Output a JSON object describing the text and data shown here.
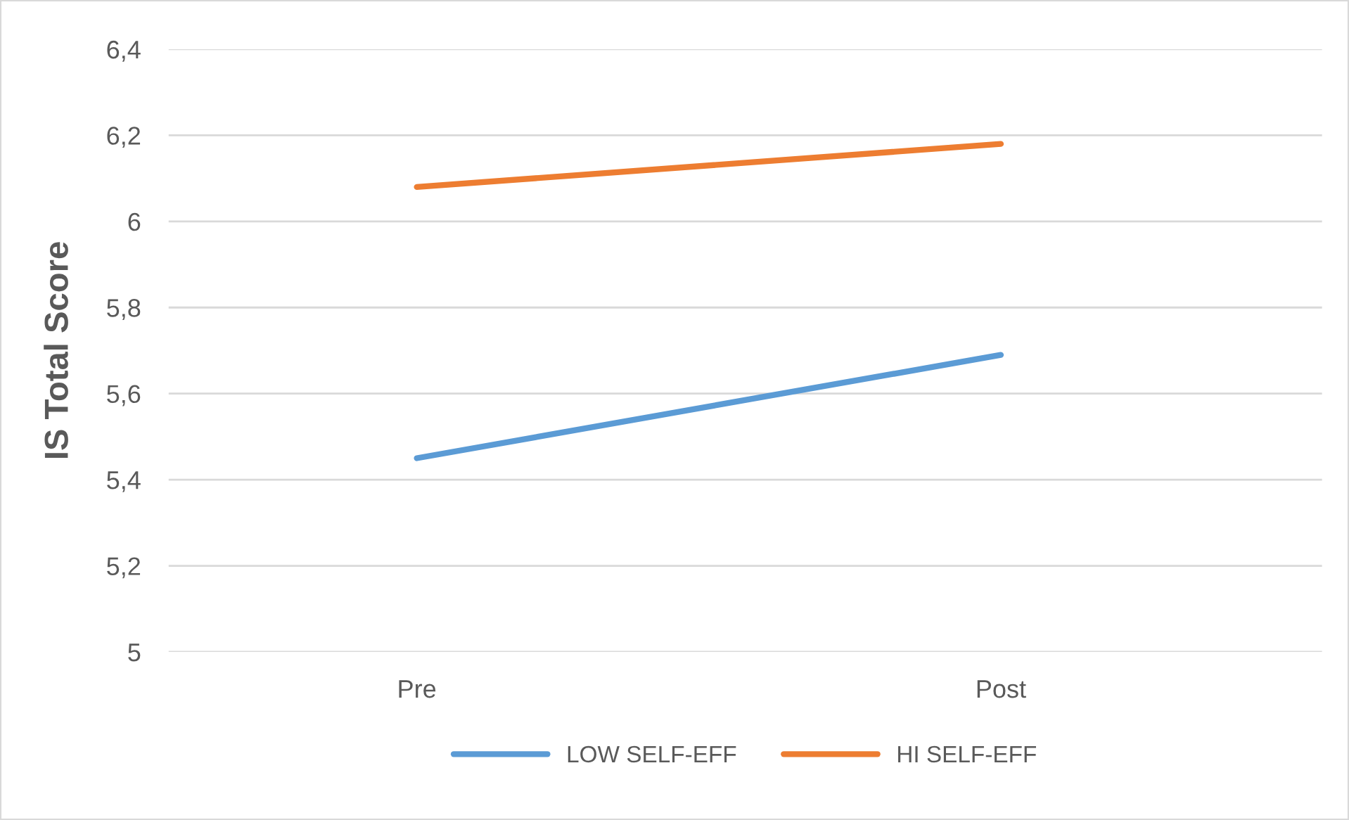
{
  "chart_data": {
    "type": "line",
    "ylabel": "IS Total Score",
    "categories": [
      "Pre",
      "Post"
    ],
    "series": [
      {
        "name": "LOW SELF-EFF",
        "color": "#5b9bd5",
        "values": [
          5.45,
          5.69
        ]
      },
      {
        "name": "HI SELF-EFF",
        "color": "#ed7d31",
        "values": [
          6.08,
          6.18
        ]
      }
    ],
    "ylim": [
      5,
      6.4
    ],
    "yticks": [
      5,
      {
        "value": 5.2,
        "label": "5,2"
      },
      {
        "value": 5.4,
        "label": "5,4"
      },
      {
        "value": 5.6,
        "label": "5,6"
      },
      {
        "value": 5.8,
        "label": "5,8"
      },
      6,
      {
        "value": 6.2,
        "label": "6,2"
      },
      {
        "value": 6.4,
        "label": "6,4"
      }
    ],
    "grid": "y",
    "legend": "bottom",
    "marker": "none",
    "line_style": "solid"
  }
}
